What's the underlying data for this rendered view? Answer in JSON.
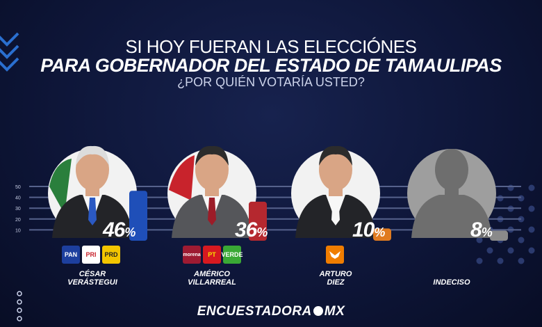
{
  "header": {
    "line1": "SI HOY FUERAN LAS ELECCIÓNES",
    "line2": "PARA GOBERNADOR DEL ESTADO DE  TAMAULIPAS",
    "line3": "¿POR QUIÉN VOTARÍA USTED?"
  },
  "chart_data": {
    "type": "bar",
    "categories": [
      "CÉSAR VERÁSTEGUI",
      "AMÉRICO VILLARREAL",
      "ARTURO DIEZ",
      "INDECISO"
    ],
    "values": [
      46,
      36,
      10,
      8
    ],
    "value_labels": [
      "46",
      "36",
      "10",
      "8"
    ],
    "value_suffix": "%",
    "y_ticks": [
      "10",
      "20",
      "30",
      "40",
      "50"
    ],
    "ylim": [
      0,
      50
    ],
    "grid": true,
    "bar_colors": [
      "#1f4fb8",
      "#b5282f",
      "#e07b20",
      "#8a8a8a"
    ]
  },
  "candidates": [
    {
      "name_line1": "CÉSAR",
      "name_line2": "VERÁSTEGUI",
      "parties": [
        "PAN",
        "PRI",
        "PRD"
      ]
    },
    {
      "name_line1": "AMÉRICO",
      "name_line2": "VILLARREAL",
      "parties": [
        "morena",
        "PT",
        "VERDE"
      ]
    },
    {
      "name_line1": "ARTURO",
      "name_line2": "DIEZ",
      "parties": []
    },
    {
      "name_line1": "INDECISO",
      "name_line2": "",
      "parties": []
    }
  ],
  "footer": {
    "brand": "ENCUESTADORA",
    "brand_suffix": "MX"
  },
  "icons": {
    "party_mc": "eagle-logo-icon",
    "undecided": "person-silhouette-icon"
  }
}
